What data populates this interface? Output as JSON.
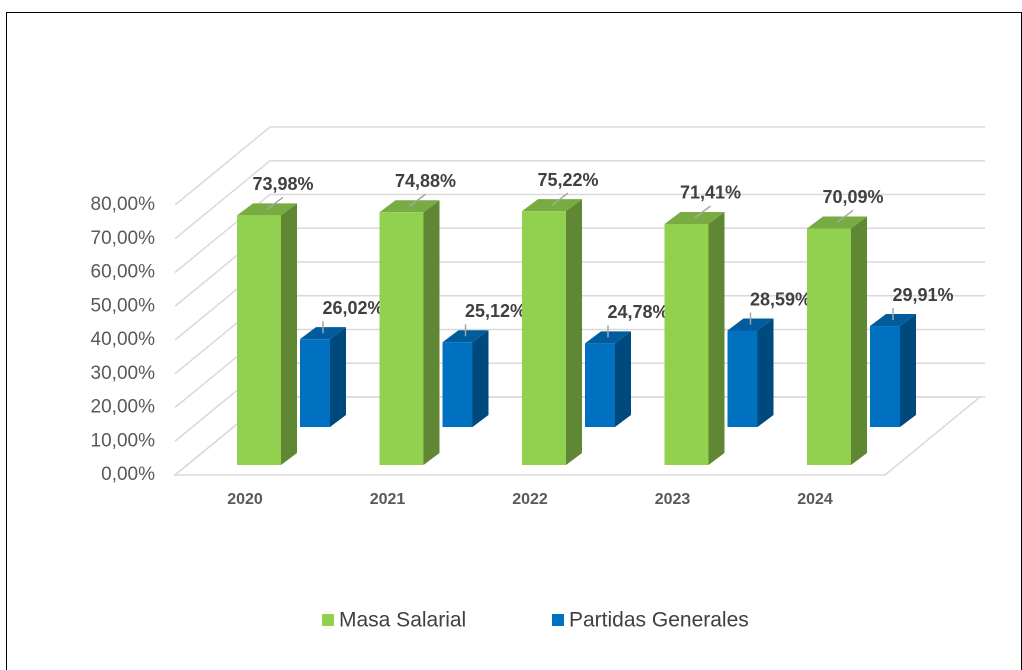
{
  "chart_data": {
    "type": "bar3d",
    "categories": [
      "2020",
      "2021",
      "2022",
      "2023",
      "2024"
    ],
    "series": [
      {
        "name": "Masa Salarial",
        "color": "#92d050",
        "values": [
          73.98,
          74.88,
          75.22,
          71.41,
          70.09
        ],
        "value_labels": [
          "73,98%",
          "74,88%",
          "75,22%",
          "71,41%",
          "70,09%"
        ]
      },
      {
        "name": "Partidas Generales",
        "color": "#0070c0",
        "values": [
          26.02,
          25.12,
          24.78,
          28.59,
          29.91
        ],
        "value_labels": [
          "26,02%",
          "25,12%",
          "24,78%",
          "28,59%",
          "29,91%"
        ]
      }
    ],
    "ylim": [
      0,
      80
    ],
    "yticks": [
      {
        "value": 0,
        "label": "0,00%"
      },
      {
        "value": 10,
        "label": "10,00%"
      },
      {
        "value": 20,
        "label": "20,00%"
      },
      {
        "value": 30,
        "label": "30,00%"
      },
      {
        "value": 40,
        "label": "40,00%"
      },
      {
        "value": 50,
        "label": "50,00%"
      },
      {
        "value": 60,
        "label": "60,00%"
      },
      {
        "value": 70,
        "label": "70,00%"
      },
      {
        "value": 80,
        "label": "80,00%"
      }
    ],
    "grid": true,
    "legend": "bottom"
  }
}
